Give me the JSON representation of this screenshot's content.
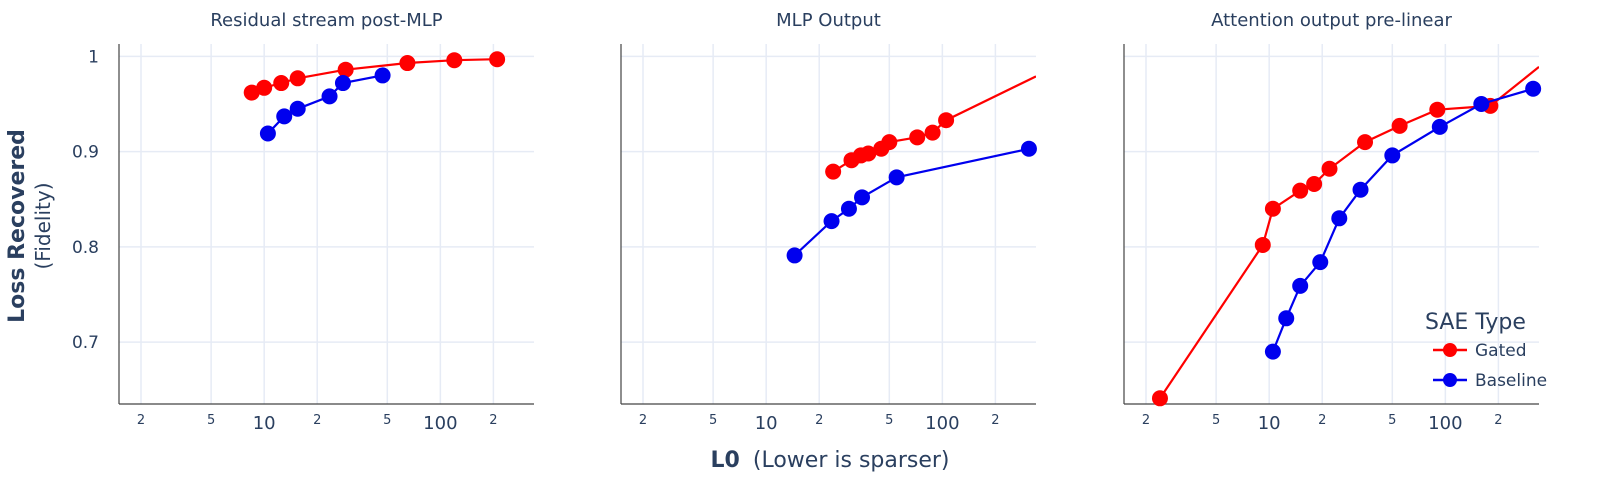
{
  "ylabel": {
    "bold": "Loss Recovered",
    "sub": "(Fidelity)"
  },
  "xlabel": {
    "bold": "L0",
    "sub": "(Lower is sparser)"
  },
  "legend": {
    "title": "SAE Type",
    "items": [
      {
        "name": "Gated",
        "color": "#ff0000"
      },
      {
        "name": "Baseline",
        "color": "#0000ee"
      }
    ]
  },
  "chart_data": [
    {
      "type": "line",
      "title": "Residual stream post-MLP",
      "xscale": "log",
      "xlim": [
        1.5,
        340
      ],
      "ylim": [
        0.635,
        1.013
      ],
      "yticks": [
        "0.7",
        "0.8",
        "0.9",
        "1"
      ],
      "ytick_values": [
        0.7,
        0.8,
        0.9,
        1.0
      ],
      "xticks": [
        "2",
        "5",
        "10",
        "2",
        "5",
        "100",
        "2"
      ],
      "xtick_values": [
        2,
        5,
        10,
        20,
        50,
        100,
        200
      ],
      "grid": true,
      "series": [
        {
          "name": "Gated",
          "color": "#ff0000",
          "x": [
            8.5,
            10,
            12.5,
            15.5,
            29,
            65,
            120,
            210
          ],
          "y": [
            0.962,
            0.967,
            0.972,
            0.977,
            0.986,
            0.993,
            0.996,
            0.997
          ]
        },
        {
          "name": "Baseline",
          "color": "#0000ee",
          "x": [
            10.5,
            13,
            15.5,
            23.5,
            28,
            47
          ],
          "y": [
            0.919,
            0.937,
            0.945,
            0.958,
            0.972,
            0.98
          ]
        }
      ]
    },
    {
      "type": "line",
      "title": "MLP Output",
      "xscale": "log",
      "xlim": [
        1.5,
        340
      ],
      "ylim": [
        0.635,
        1.013
      ],
      "yticks": [
        "0.7",
        "0.8",
        "0.9",
        "1"
      ],
      "ytick_values": [
        0.7,
        0.8,
        0.9,
        1.0
      ],
      "xticks": [
        "2",
        "5",
        "10",
        "2",
        "5",
        "100",
        "2"
      ],
      "xtick_values": [
        2,
        5,
        10,
        20,
        50,
        100,
        200
      ],
      "grid": true,
      "show_ytick_labels": false,
      "series": [
        {
          "name": "Gated",
          "color": "#ff0000",
          "x": [
            24,
            30.5,
            34.5,
            38,
            45,
            50,
            72,
            88,
            105
          ],
          "y": [
            0.879,
            0.891,
            0.896,
            0.898,
            0.903,
            0.91,
            0.915,
            0.92,
            0.933
          ],
          "line_extends_to": [
            340,
            0.979
          ]
        },
        {
          "name": "Baseline",
          "color": "#0000ee",
          "x": [
            14.5,
            23.5,
            29.5,
            35,
            55,
            310
          ],
          "y": [
            0.791,
            0.827,
            0.84,
            0.852,
            0.873,
            0.903
          ]
        }
      ]
    },
    {
      "type": "line",
      "title": "Attention output pre-linear",
      "xscale": "log",
      "xlim": [
        1.5,
        340
      ],
      "ylim": [
        0.635,
        1.013
      ],
      "yticks": [
        "0.7",
        "0.8",
        "0.9",
        "1"
      ],
      "ytick_values": [
        0.7,
        0.8,
        0.9,
        1.0
      ],
      "xticks": [
        "2",
        "5",
        "10",
        "2",
        "5",
        "100",
        "2"
      ],
      "xtick_values": [
        2,
        5,
        10,
        20,
        50,
        100,
        200
      ],
      "grid": true,
      "show_ytick_labels": false,
      "series": [
        {
          "name": "Gated",
          "color": "#ff0000",
          "x": [
            2.4,
            9.2,
            10.5,
            15,
            18,
            22,
            35,
            55,
            90,
            180
          ],
          "y": [
            0.641,
            0.802,
            0.84,
            0.859,
            0.866,
            0.882,
            0.91,
            0.927,
            0.944,
            0.948
          ],
          "line_extends_to": [
            340,
            0.989
          ]
        },
        {
          "name": "Baseline",
          "color": "#0000ee",
          "x": [
            10.5,
            12.5,
            15,
            19.5,
            25,
            33,
            50,
            93,
            160,
            315
          ],
          "y": [
            0.69,
            0.725,
            0.759,
            0.784,
            0.83,
            0.86,
            0.896,
            0.926,
            0.95,
            0.966
          ]
        }
      ]
    }
  ]
}
